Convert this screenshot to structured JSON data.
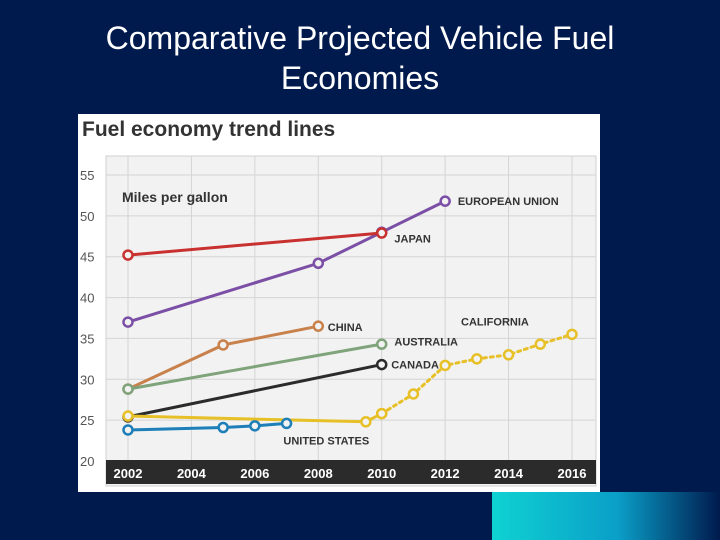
{
  "slide": {
    "title_line1": "Comparative Projected Vehicle Fuel",
    "title_line2": "Economies"
  },
  "chart_data": {
    "type": "line",
    "title": "Fuel economy trend lines",
    "ylabel": "Miles per gallon",
    "xlabel": "",
    "xlim": [
      2002,
      2016
    ],
    "ylim": [
      20,
      55
    ],
    "x_ticks": [
      2002,
      2004,
      2006,
      2008,
      2010,
      2012,
      2014,
      2016
    ],
    "y_ticks": [
      20,
      25,
      30,
      35,
      40,
      45,
      50,
      55
    ],
    "grid": true,
    "series": [
      {
        "name": "EUROPEAN UNION",
        "color": "#7b4fa6",
        "style": "solid",
        "x": [
          2002,
          2008,
          2010,
          2012
        ],
        "y": [
          37,
          44.2,
          48,
          51.8
        ]
      },
      {
        "name": "JAPAN",
        "color": "#c8312f",
        "style": "solid",
        "x": [
          2002,
          2010
        ],
        "y": [
          45.2,
          47.9
        ]
      },
      {
        "name": "CHINA",
        "color": "#c8814a",
        "style": "solid",
        "x": [
          2002,
          2005,
          2008
        ],
        "y": [
          28.8,
          34.2,
          36.5
        ]
      },
      {
        "name": "AUSTRALIA",
        "color": "#7fa37a",
        "style": "solid",
        "x": [
          2002,
          2010
        ],
        "y": [
          28.8,
          34.3
        ]
      },
      {
        "name": "CANADA",
        "color": "#2b2b2b",
        "style": "solid",
        "x": [
          2002,
          2010
        ],
        "y": [
          25.4,
          31.8
        ]
      },
      {
        "name": "UNITED STATES",
        "color": "#e7c027",
        "style": "solid",
        "x": [
          2002,
          2009.5,
          2010
        ],
        "y": [
          25.5,
          24.8,
          25.8
        ]
      },
      {
        "name": "CALIFORNIA",
        "color": "#e7c027",
        "style": "dotted",
        "x": [
          2010,
          2011,
          2012,
          2013,
          2014,
          2015,
          2016
        ],
        "y": [
          25.8,
          28.2,
          31.7,
          32.5,
          33.0,
          34.3,
          35.5
        ]
      },
      {
        "name": "US blue segment",
        "color": "#1e7fb8",
        "style": "solid",
        "x": [
          2002,
          2005,
          2006,
          2007
        ],
        "y": [
          23.8,
          24.1,
          24.3,
          24.6
        ]
      }
    ],
    "annotations": [
      {
        "text": "EUROPEAN UNION",
        "x": 2012.4,
        "y": 51.8
      },
      {
        "text": "JAPAN",
        "x": 2010.4,
        "y": 47.2
      },
      {
        "text": "CHINA",
        "x": 2008.3,
        "y": 36.4
      },
      {
        "text": "AUSTRALIA",
        "x": 2010.4,
        "y": 34.6
      },
      {
        "text": "CANADA",
        "x": 2010.3,
        "y": 31.8
      },
      {
        "text": "UNITED STATES",
        "x": 2006.9,
        "y": 22.5
      },
      {
        "text": "CALIFORNIA",
        "x": 2012.5,
        "y": 37.1
      }
    ]
  }
}
